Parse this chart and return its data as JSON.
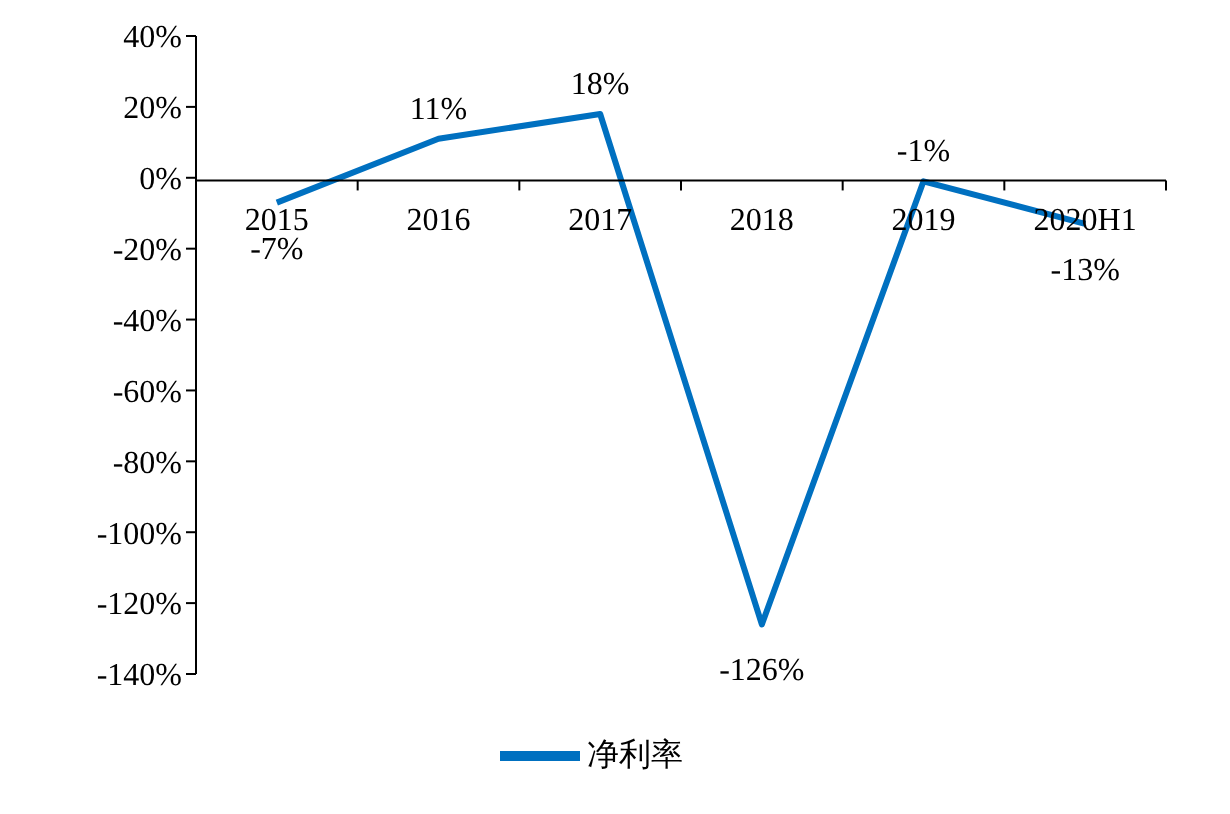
{
  "chart_data": {
    "type": "line",
    "categories": [
      "2015",
      "2016",
      "2017",
      "2018",
      "2019",
      "2020H1"
    ],
    "series": [
      {
        "name": "净利率",
        "color": "#0070c0",
        "values": [
          -7,
          11,
          18,
          -126,
          -1,
          -13
        ],
        "value_labels": [
          "-7%",
          "11%",
          "18%",
          "-126%",
          "-1%",
          "-13%"
        ]
      }
    ],
    "ylim": [
      -140,
      40
    ],
    "yticks": [
      {
        "value": -140,
        "label": "-140%"
      },
      {
        "value": -120,
        "label": "-120%"
      },
      {
        "value": -100,
        "label": "-100%"
      },
      {
        "value": -80,
        "label": "-80%"
      },
      {
        "value": -60,
        "label": "-60%"
      },
      {
        "value": -40,
        "label": "-40%"
      },
      {
        "value": -20,
        "label": "-20%"
      },
      {
        "value": 0,
        "label": "0%"
      },
      {
        "value": 20,
        "label": "20%"
      },
      {
        "value": 40,
        "label": "40%"
      }
    ],
    "grid": false,
    "legend": "bottom",
    "marker": "none",
    "line_style": "solid"
  }
}
